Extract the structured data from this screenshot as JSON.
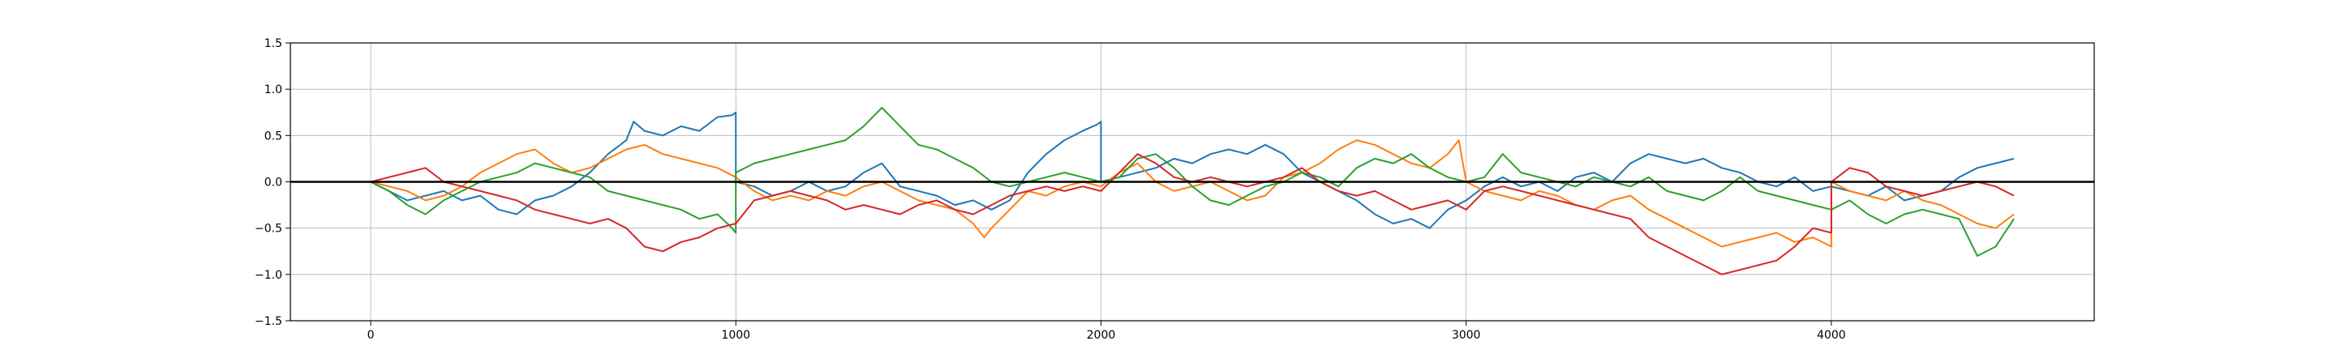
{
  "chart_data": {
    "type": "line",
    "title": "",
    "xlabel": "",
    "ylabel": "",
    "xlim": [
      -220,
      4720
    ],
    "ylim": [
      -1.5,
      1.5
    ],
    "xticks": [
      0,
      1000,
      2000,
      3000,
      4000
    ],
    "xtick_labels": [
      "0",
      "1000",
      "2000",
      "3000",
      "4000"
    ],
    "yticks": [
      -1.5,
      -1.0,
      -0.5,
      0.0,
      0.5,
      1.0,
      1.5
    ],
    "ytick_labels": [
      "−1.5",
      "−1.0",
      "−0.5",
      "0.0",
      "0.5",
      "1.0",
      "1.5"
    ],
    "grid": true,
    "legend": "none",
    "reference_line": {
      "y": 0,
      "color": "#000000"
    },
    "series": [
      {
        "color": "#1f77b4",
        "x": [
          0,
          50,
          100,
          150,
          200,
          250,
          300,
          350,
          400,
          450,
          500,
          550,
          600,
          650,
          700,
          720,
          750,
          800,
          850,
          900,
          950,
          990,
          1000,
          1000,
          1050,
          1100,
          1150,
          1200,
          1250,
          1300,
          1350,
          1400,
          1450,
          1500,
          1550,
          1600,
          1650,
          1700,
          1750,
          1800,
          1850,
          1900,
          1950,
          1990,
          2000,
          2000,
          2050,
          2100,
          2150,
          2200,
          2250,
          2300,
          2350,
          2400,
          2450,
          2500,
          2550,
          2600,
          2650,
          2700,
          2750,
          2800,
          2850,
          2900,
          2950,
          3000,
          3050,
          3100,
          3150,
          3200,
          3250,
          3300,
          3350,
          3400,
          3450,
          3500,
          3550,
          3600,
          3650,
          3700,
          3750,
          3800,
          3850,
          3900,
          3950,
          4000,
          4050,
          4100,
          4150,
          4200,
          4250,
          4300,
          4350,
          4400,
          4450,
          4500
        ],
        "y": [
          0.0,
          -0.1,
          -0.2,
          -0.15,
          -0.1,
          -0.2,
          -0.15,
          -0.3,
          -0.35,
          -0.2,
          -0.15,
          -0.05,
          0.1,
          0.3,
          0.45,
          0.65,
          0.55,
          0.5,
          0.6,
          0.55,
          0.7,
          0.72,
          0.75,
          0.0,
          -0.05,
          -0.15,
          -0.1,
          0.0,
          -0.1,
          -0.05,
          0.1,
          0.2,
          -0.05,
          -0.1,
          -0.15,
          -0.25,
          -0.2,
          -0.3,
          -0.2,
          0.1,
          0.3,
          0.45,
          0.55,
          0.62,
          0.65,
          0.0,
          0.05,
          0.1,
          0.15,
          0.25,
          0.2,
          0.3,
          0.35,
          0.3,
          0.4,
          0.3,
          0.1,
          0.0,
          -0.1,
          -0.2,
          -0.35,
          -0.45,
          -0.4,
          -0.5,
          -0.3,
          -0.2,
          -0.05,
          0.05,
          -0.05,
          0.0,
          -0.1,
          0.05,
          0.1,
          0.0,
          0.2,
          0.3,
          0.25,
          0.2,
          0.25,
          0.15,
          0.1,
          0.0,
          -0.05,
          0.05,
          -0.1,
          -0.05,
          -0.1,
          -0.15,
          -0.05,
          -0.2,
          -0.15,
          -0.1,
          0.05,
          0.15,
          0.2,
          0.25
        ]
      },
      {
        "color": "#ff7f0e",
        "x": [
          0,
          50,
          100,
          150,
          200,
          250,
          300,
          350,
          400,
          450,
          500,
          550,
          600,
          650,
          700,
          750,
          800,
          850,
          900,
          950,
          1000,
          1050,
          1100,
          1150,
          1200,
          1250,
          1300,
          1350,
          1400,
          1450,
          1500,
          1550,
          1600,
          1650,
          1680,
          1700,
          1750,
          1800,
          1850,
          1900,
          1950,
          2000,
          2050,
          2100,
          2150,
          2200,
          2250,
          2300,
          2350,
          2400,
          2450,
          2500,
          2550,
          2600,
          2650,
          2700,
          2750,
          2800,
          2850,
          2900,
          2950,
          2980,
          3000,
          3050,
          3100,
          3150,
          3200,
          3250,
          3300,
          3350,
          3400,
          3450,
          3500,
          3550,
          3600,
          3650,
          3700,
          3750,
          3800,
          3850,
          3900,
          3950,
          4000,
          4000,
          4050,
          4100,
          4150,
          4200,
          4250,
          4300,
          4350,
          4400,
          4450,
          4500
        ],
        "y": [
          0.0,
          -0.05,
          -0.1,
          -0.2,
          -0.15,
          -0.05,
          0.1,
          0.2,
          0.3,
          0.35,
          0.2,
          0.1,
          0.15,
          0.25,
          0.35,
          0.4,
          0.3,
          0.25,
          0.2,
          0.15,
          0.05,
          -0.1,
          -0.2,
          -0.15,
          -0.2,
          -0.1,
          -0.15,
          -0.05,
          0.0,
          -0.1,
          -0.2,
          -0.25,
          -0.3,
          -0.45,
          -0.6,
          -0.5,
          -0.3,
          -0.1,
          -0.15,
          -0.05,
          0.0,
          -0.05,
          0.1,
          0.2,
          0.0,
          -0.1,
          -0.05,
          0.0,
          -0.1,
          -0.2,
          -0.15,
          0.05,
          0.1,
          0.2,
          0.35,
          0.45,
          0.4,
          0.3,
          0.2,
          0.15,
          0.3,
          0.45,
          0.0,
          -0.1,
          -0.15,
          -0.2,
          -0.1,
          -0.15,
          -0.25,
          -0.3,
          -0.2,
          -0.15,
          -0.3,
          -0.4,
          -0.5,
          -0.6,
          -0.7,
          -0.65,
          -0.6,
          -0.55,
          -0.65,
          -0.6,
          -0.7,
          0.0,
          -0.1,
          -0.15,
          -0.2,
          -0.1,
          -0.2,
          -0.25,
          -0.35,
          -0.45,
          -0.5,
          -0.35
        ]
      },
      {
        "color": "#2ca02c",
        "x": [
          0,
          50,
          100,
          150,
          200,
          250,
          300,
          350,
          400,
          450,
          500,
          550,
          600,
          650,
          700,
          750,
          800,
          850,
          900,
          950,
          990,
          1000,
          1000,
          1050,
          1100,
          1150,
          1200,
          1250,
          1300,
          1350,
          1400,
          1450,
          1500,
          1550,
          1600,
          1650,
          1700,
          1750,
          1800,
          1850,
          1900,
          1950,
          2000,
          2050,
          2100,
          2150,
          2200,
          2250,
          2300,
          2350,
          2400,
          2450,
          2500,
          2550,
          2600,
          2650,
          2700,
          2750,
          2800,
          2850,
          2900,
          2950,
          3000,
          3050,
          3100,
          3150,
          3200,
          3250,
          3300,
          3350,
          3400,
          3450,
          3500,
          3550,
          3600,
          3650,
          3700,
          3750,
          3800,
          3850,
          3900,
          3950,
          4000,
          4050,
          4100,
          4150,
          4200,
          4250,
          4300,
          4350,
          4400,
          4450,
          4500
        ],
        "y": [
          0.0,
          -0.1,
          -0.25,
          -0.35,
          -0.2,
          -0.1,
          0.0,
          0.05,
          0.1,
          0.2,
          0.15,
          0.1,
          0.05,
          -0.1,
          -0.15,
          -0.2,
          -0.25,
          -0.3,
          -0.4,
          -0.35,
          -0.5,
          -0.55,
          0.1,
          0.2,
          0.25,
          0.3,
          0.35,
          0.4,
          0.45,
          0.6,
          0.8,
          0.6,
          0.4,
          0.35,
          0.25,
          0.15,
          0.0,
          -0.05,
          0.0,
          0.05,
          0.1,
          0.05,
          0.0,
          0.05,
          0.25,
          0.3,
          0.15,
          -0.05,
          -0.2,
          -0.25,
          -0.15,
          -0.05,
          0.0,
          0.1,
          0.05,
          -0.05,
          0.15,
          0.25,
          0.2,
          0.3,
          0.15,
          0.05,
          0.0,
          0.05,
          0.3,
          0.1,
          0.05,
          0.0,
          -0.05,
          0.05,
          0.0,
          -0.05,
          0.05,
          -0.1,
          -0.15,
          -0.2,
          -0.1,
          0.05,
          -0.1,
          -0.15,
          -0.2,
          -0.25,
          -0.3,
          -0.2,
          -0.35,
          -0.45,
          -0.35,
          -0.3,
          -0.35,
          -0.4,
          -0.8,
          -0.7,
          -0.4
        ]
      },
      {
        "color": "#d62728",
        "x": [
          0,
          50,
          100,
          150,
          200,
          250,
          300,
          350,
          400,
          450,
          500,
          550,
          600,
          650,
          700,
          750,
          800,
          850,
          900,
          950,
          1000,
          1050,
          1100,
          1150,
          1200,
          1250,
          1300,
          1350,
          1400,
          1450,
          1500,
          1550,
          1600,
          1650,
          1700,
          1750,
          1800,
          1850,
          1900,
          1950,
          2000,
          2050,
          2100,
          2150,
          2200,
          2250,
          2300,
          2350,
          2400,
          2450,
          2500,
          2550,
          2600,
          2650,
          2700,
          2750,
          2800,
          2850,
          2900,
          2950,
          3000,
          3050,
          3100,
          3150,
          3200,
          3250,
          3300,
          3350,
          3400,
          3450,
          3500,
          3550,
          3600,
          3650,
          3700,
          3750,
          3800,
          3850,
          3900,
          3950,
          4000,
          4000,
          4050,
          4100,
          4150,
          4200,
          4250,
          4300,
          4350,
          4400,
          4450,
          4500
        ],
        "y": [
          0.0,
          0.05,
          0.1,
          0.15,
          0.0,
          -0.05,
          -0.1,
          -0.15,
          -0.2,
          -0.3,
          -0.35,
          -0.4,
          -0.45,
          -0.4,
          -0.5,
          -0.7,
          -0.75,
          -0.65,
          -0.6,
          -0.5,
          -0.45,
          -0.2,
          -0.15,
          -0.1,
          -0.15,
          -0.2,
          -0.3,
          -0.25,
          -0.3,
          -0.35,
          -0.25,
          -0.2,
          -0.3,
          -0.35,
          -0.25,
          -0.15,
          -0.1,
          -0.05,
          -0.1,
          -0.05,
          -0.1,
          0.1,
          0.3,
          0.2,
          0.05,
          0.0,
          0.05,
          0.0,
          -0.05,
          0.0,
          0.05,
          0.15,
          0.0,
          -0.1,
          -0.15,
          -0.1,
          -0.2,
          -0.3,
          -0.25,
          -0.2,
          -0.3,
          -0.1,
          -0.05,
          -0.1,
          -0.15,
          -0.2,
          -0.25,
          -0.3,
          -0.35,
          -0.4,
          -0.6,
          -0.7,
          -0.8,
          -0.9,
          -1.0,
          -0.95,
          -0.9,
          -0.85,
          -0.7,
          -0.5,
          -0.55,
          0.0,
          0.15,
          0.1,
          -0.05,
          -0.1,
          -0.15,
          -0.1,
          -0.05,
          0.0,
          -0.05,
          -0.15
        ]
      }
    ]
  }
}
